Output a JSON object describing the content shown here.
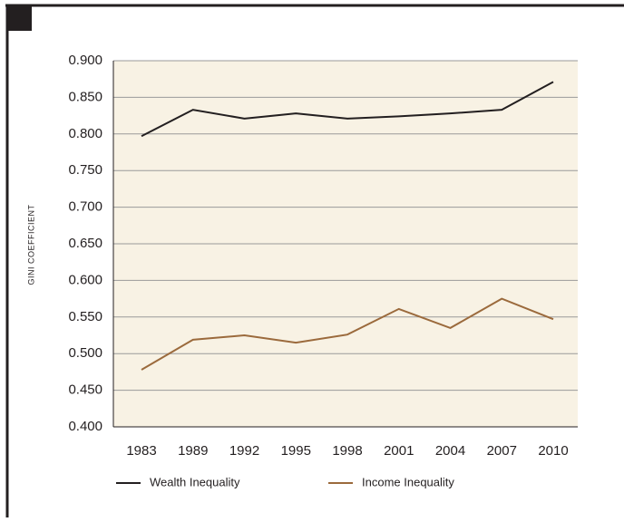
{
  "chart_data": {
    "type": "line",
    "y_label": "GINI COEFFICIENT",
    "categories": [
      "1983",
      "1989",
      "1992",
      "1995",
      "1998",
      "2001",
      "2004",
      "2007",
      "2010"
    ],
    "series": [
      {
        "name": "Wealth Inequality",
        "color": "#231f20",
        "values": [
          0.797,
          0.833,
          0.821,
          0.828,
          0.821,
          0.824,
          0.828,
          0.833,
          0.871
        ]
      },
      {
        "name": "Income Inequality",
        "color": "#9b6a3c",
        "values": [
          0.478,
          0.519,
          0.525,
          0.515,
          0.526,
          0.561,
          0.535,
          0.575,
          0.547
        ]
      }
    ],
    "ylim": [
      0.4,
      0.9
    ],
    "yticks": [
      {
        "value": 0.4,
        "label": "0.400"
      },
      {
        "value": 0.45,
        "label": "0.450"
      },
      {
        "value": 0.5,
        "label": "0.500"
      },
      {
        "value": 0.55,
        "label": "0.550"
      },
      {
        "value": 0.6,
        "label": "0.600"
      },
      {
        "value": 0.65,
        "label": "0.650"
      },
      {
        "value": 0.7,
        "label": "0.700"
      },
      {
        "value": 0.75,
        "label": "0.750"
      },
      {
        "value": 0.8,
        "label": "0.800"
      },
      {
        "value": 0.85,
        "label": "0.850"
      },
      {
        "value": 0.9,
        "label": "0.900"
      }
    ],
    "grid": true,
    "legend": "bottom"
  }
}
